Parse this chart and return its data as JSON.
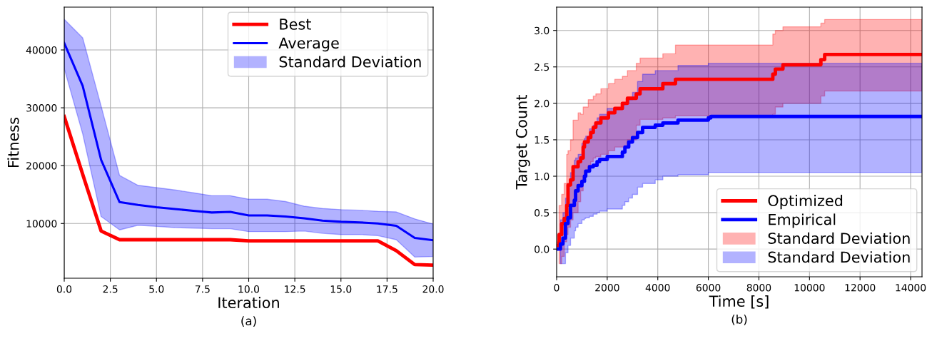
{
  "chart_data": [
    {
      "type": "line",
      "xlabel": "Iteration",
      "ylabel": "Fitness",
      "xlim": [
        0,
        20
      ],
      "ylim": [
        540,
        47400
      ],
      "xticks": [
        {
          "value": 0,
          "label": "0.0"
        },
        {
          "value": 2.5,
          "label": "2.5"
        },
        {
          "value": 5,
          "label": "5.0"
        },
        {
          "value": 7.5,
          "label": "7.5"
        },
        {
          "value": 10,
          "label": "10.0"
        },
        {
          "value": 12.5,
          "label": "12.5"
        },
        {
          "value": 15,
          "label": "15.0"
        },
        {
          "value": 17.5,
          "label": "17.5"
        },
        {
          "value": 20,
          "label": "20.0"
        }
      ],
      "yticks": [
        10000,
        20000,
        30000,
        40000
      ],
      "grid": true,
      "legend": "top right",
      "annotations": [
        "(a)",
        "Standard Deviation"
      ],
      "series": [
        {
          "name": "Best",
          "color": "#ff0000",
          "x": [
            0,
            1,
            2,
            3,
            4,
            5,
            6,
            7,
            8,
            9,
            10,
            11,
            12,
            13,
            14,
            15,
            16,
            17,
            18,
            19,
            20
          ],
          "values": [
            28500,
            18500,
            8700,
            7200,
            7200,
            7200,
            7200,
            7200,
            7200,
            7200,
            7000,
            7000,
            7000,
            7000,
            7000,
            7000,
            7000,
            7000,
            5300,
            2900,
            2800
          ]
        },
        {
          "name": "Average",
          "color": "#0000ff",
          "x": [
            0,
            1,
            2,
            3,
            4,
            5,
            6,
            7,
            8,
            9,
            10,
            11,
            12,
            13,
            14,
            15,
            16,
            17,
            18,
            19,
            20
          ],
          "values": [
            41200,
            33800,
            21000,
            13700,
            13200,
            12800,
            12500,
            12200,
            11900,
            12000,
            11400,
            11400,
            11200,
            10900,
            10500,
            10300,
            10200,
            10000,
            9600,
            7500,
            7100
          ],
          "lower": [
            36800,
            25500,
            11200,
            8900,
            9700,
            9500,
            9300,
            9200,
            9100,
            9100,
            8600,
            8600,
            8600,
            8700,
            8300,
            8100,
            8100,
            7900,
            7200,
            4200,
            4300
          ],
          "upper": [
            45300,
            42100,
            30300,
            18300,
            16600,
            16200,
            15800,
            15300,
            14800,
            14800,
            14200,
            14200,
            13800,
            13000,
            12600,
            12400,
            12300,
            12100,
            12000,
            10800,
            9900
          ]
        }
      ]
    },
    {
      "type": "step",
      "xlabel": "Time [s]",
      "ylabel": "Target Count",
      "xlim": [
        0,
        14450
      ],
      "ylim": [
        -0.38,
        3.32
      ],
      "xticks": [
        0,
        2000,
        4000,
        6000,
        8000,
        10000,
        12000,
        14000
      ],
      "yticks": [
        {
          "value": 0,
          "label": "0.0"
        },
        {
          "value": 0.5,
          "label": "0.5"
        },
        {
          "value": 1,
          "label": "1.0"
        },
        {
          "value": 1.5,
          "label": "1.5"
        },
        {
          "value": 2,
          "label": "2.0"
        },
        {
          "value": 2.5,
          "label": "2.5"
        },
        {
          "value": 3,
          "label": "3.0"
        }
      ],
      "grid": true,
      "legend": "bottom right",
      "annotations": [
        "(b)",
        "Standard Deviation",
        "Standard Deviation"
      ],
      "series": [
        {
          "name": "Optimized",
          "color": "#ff0000",
          "x": [
            0,
            100,
            200,
            300,
            400,
            450,
            550,
            650,
            850,
            950,
            1050,
            1100,
            1250,
            1350,
            1450,
            1550,
            1750,
            2050,
            2300,
            2600,
            2800,
            3150,
            3300,
            4200,
            4700,
            8550,
            8650,
            8950,
            10450,
            10600,
            14450
          ],
          "values": [
            0.05,
            0.2,
            0.35,
            0.42,
            0.6,
            0.88,
            0.95,
            1.13,
            1.2,
            1.25,
            1.4,
            1.47,
            1.53,
            1.6,
            1.67,
            1.73,
            1.8,
            1.87,
            1.93,
            2.0,
            2.07,
            2.13,
            2.2,
            2.27,
            2.33,
            2.4,
            2.47,
            2.53,
            2.6,
            2.67,
            2.67
          ],
          "lower": [
            0.0,
            -0.2,
            -0.1,
            0.1,
            0.2,
            0.3,
            0.4,
            0.5,
            0.65,
            0.8,
            1.0,
            1.05,
            1.15,
            1.2,
            1.25,
            1.27,
            1.3,
            1.35,
            1.4,
            1.4,
            1.5,
            1.7,
            1.78,
            1.8,
            1.83,
            1.85,
            1.95,
            2.0,
            2.1,
            2.17,
            2.17
          ],
          "upper": [
            0.1,
            0.6,
            0.75,
            0.9,
            1.3,
            1.35,
            1.5,
            1.77,
            1.87,
            1.85,
            1.95,
            1.95,
            2.05,
            2.05,
            2.1,
            2.13,
            2.2,
            2.27,
            2.33,
            2.37,
            2.45,
            2.55,
            2.62,
            2.68,
            2.8,
            2.95,
            3.0,
            3.05,
            3.1,
            3.15,
            3.15
          ]
        },
        {
          "name": "Empirical",
          "color": "#0000ff",
          "x": [
            0,
            150,
            250,
            350,
            450,
            550,
            700,
            750,
            850,
            1000,
            1100,
            1150,
            1300,
            1450,
            1600,
            1700,
            2000,
            2600,
            2700,
            2850,
            3000,
            3200,
            3400,
            3900,
            4200,
            4800,
            6000,
            6100,
            14450
          ],
          "values": [
            0.0,
            0.07,
            0.15,
            0.35,
            0.43,
            0.6,
            0.67,
            0.8,
            0.87,
            0.93,
            1.0,
            1.07,
            1.13,
            1.15,
            1.2,
            1.23,
            1.27,
            1.33,
            1.4,
            1.47,
            1.53,
            1.6,
            1.67,
            1.7,
            1.73,
            1.77,
            1.8,
            1.82,
            1.82
          ],
          "lower": [
            0.0,
            -0.2,
            -0.2,
            -0.05,
            0.05,
            0.15,
            0.25,
            0.3,
            0.35,
            0.4,
            0.42,
            0.43,
            0.45,
            0.48,
            0.5,
            0.52,
            0.55,
            0.6,
            0.65,
            0.7,
            0.75,
            0.85,
            0.9,
            0.95,
            1.0,
            1.02,
            1.05,
            1.05,
            1.07
          ],
          "upper": [
            0.05,
            0.4,
            0.5,
            0.7,
            0.9,
            1.05,
            1.22,
            1.25,
            1.3,
            1.45,
            1.52,
            1.55,
            1.65,
            1.7,
            1.8,
            1.85,
            1.93,
            1.98,
            2.0,
            2.05,
            2.15,
            2.3,
            2.4,
            2.45,
            2.45,
            2.52,
            2.55,
            2.55,
            2.55
          ]
        }
      ]
    }
  ]
}
